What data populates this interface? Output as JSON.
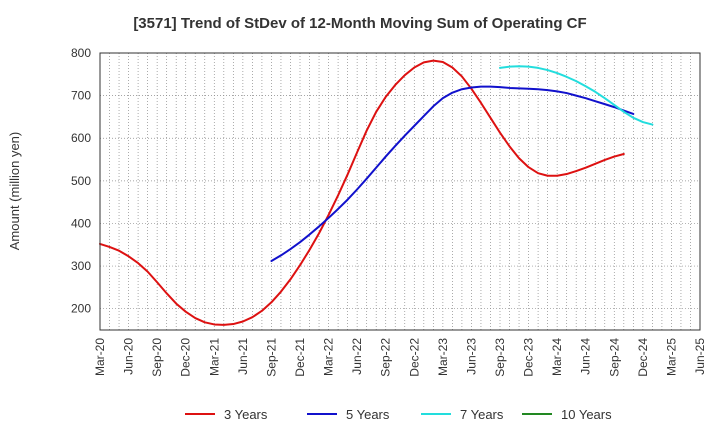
{
  "chart_data": {
    "type": "line",
    "title": "[3571]  Trend of StDev of 12-Month Moving Sum of Operating CF",
    "xlabel": "",
    "ylabel": "Amount (million yen)",
    "ylim": [
      150,
      800
    ],
    "yticks": [
      200,
      300,
      400,
      500,
      600,
      700,
      800
    ],
    "x_range": [
      "Mar-20",
      "Jun-25"
    ],
    "x_tick_labels": [
      "Mar-20",
      "Jun-20",
      "Sep-20",
      "Dec-20",
      "Mar-21",
      "Jun-21",
      "Sep-21",
      "Dec-21",
      "Mar-22",
      "Jun-22",
      "Sep-22",
      "Dec-22",
      "Mar-23",
      "Jun-23",
      "Sep-23",
      "Dec-23",
      "Mar-24",
      "Jun-24",
      "Sep-24",
      "Dec-24",
      "Mar-25",
      "Jun-25"
    ],
    "grid": true,
    "legend_position": "bottom",
    "series": [
      {
        "name": "3 Years",
        "color": "#dd1111",
        "points": [
          [
            "Mar-20",
            352
          ],
          [
            "Apr-20",
            345
          ],
          [
            "May-20",
            336
          ],
          [
            "Jun-20",
            323
          ],
          [
            "Jul-20",
            307
          ],
          [
            "Aug-20",
            287
          ],
          [
            "Sep-20",
            262
          ],
          [
            "Oct-20",
            236
          ],
          [
            "Nov-20",
            212
          ],
          [
            "Dec-20",
            193
          ],
          [
            "Jan-21",
            178
          ],
          [
            "Feb-21",
            168
          ],
          [
            "Mar-21",
            163
          ],
          [
            "Apr-21",
            162
          ],
          [
            "May-21",
            164
          ],
          [
            "Jun-21",
            170
          ],
          [
            "Jul-21",
            180
          ],
          [
            "Aug-21",
            195
          ],
          [
            "Sep-21",
            215
          ],
          [
            "Oct-21",
            240
          ],
          [
            "Nov-21",
            269
          ],
          [
            "Dec-21",
            302
          ],
          [
            "Jan-22",
            338
          ],
          [
            "Feb-22",
            377
          ],
          [
            "Mar-22",
            420
          ],
          [
            "Apr-22",
            466
          ],
          [
            "May-22",
            515
          ],
          [
            "Jun-22",
            567
          ],
          [
            "Jul-22",
            618
          ],
          [
            "Aug-22",
            662
          ],
          [
            "Sep-22",
            697
          ],
          [
            "Oct-22",
            725
          ],
          [
            "Nov-22",
            748
          ],
          [
            "Dec-22",
            766
          ],
          [
            "Jan-23",
            778
          ],
          [
            "Feb-23",
            782
          ],
          [
            "Mar-23",
            779
          ],
          [
            "Apr-23",
            766
          ],
          [
            "May-23",
            745
          ],
          [
            "Jun-23",
            716
          ],
          [
            "Jul-23",
            683
          ],
          [
            "Aug-23",
            648
          ],
          [
            "Sep-23",
            613
          ],
          [
            "Oct-23",
            581
          ],
          [
            "Nov-23",
            553
          ],
          [
            "Dec-23",
            532
          ],
          [
            "Jan-24",
            518
          ],
          [
            "Feb-24",
            512
          ],
          [
            "Mar-24",
            512
          ],
          [
            "Apr-24",
            516
          ],
          [
            "May-24",
            523
          ],
          [
            "Jun-24",
            531
          ],
          [
            "Jul-24",
            540
          ],
          [
            "Aug-24",
            549
          ],
          [
            "Sep-24",
            557
          ],
          [
            "Oct-24",
            563
          ]
        ]
      },
      {
        "name": "5 Years",
        "color": "#1111cc",
        "points": [
          [
            "Sep-21",
            312
          ],
          [
            "Oct-21",
            325
          ],
          [
            "Nov-21",
            340
          ],
          [
            "Dec-21",
            356
          ],
          [
            "Jan-22",
            374
          ],
          [
            "Feb-22",
            393
          ],
          [
            "Mar-22",
            413
          ],
          [
            "Apr-22",
            434
          ],
          [
            "May-22",
            456
          ],
          [
            "Jun-22",
            480
          ],
          [
            "Jul-22",
            505
          ],
          [
            "Aug-22",
            531
          ],
          [
            "Sep-22",
            557
          ],
          [
            "Oct-22",
            582
          ],
          [
            "Nov-22",
            606
          ],
          [
            "Dec-22",
            629
          ],
          [
            "Jan-23",
            652
          ],
          [
            "Feb-23",
            675
          ],
          [
            "Mar-23",
            694
          ],
          [
            "Apr-23",
            707
          ],
          [
            "May-23",
            715
          ],
          [
            "Jun-23",
            719
          ],
          [
            "Jul-23",
            721
          ],
          [
            "Aug-23",
            721
          ],
          [
            "Sep-23",
            720
          ],
          [
            "Oct-23",
            718
          ],
          [
            "Nov-23",
            717
          ],
          [
            "Dec-23",
            716
          ],
          [
            "Jan-24",
            715
          ],
          [
            "Feb-24",
            713
          ],
          [
            "Mar-24",
            710
          ],
          [
            "Apr-24",
            706
          ],
          [
            "May-24",
            700
          ],
          [
            "Jun-24",
            694
          ],
          [
            "Jul-24",
            687
          ],
          [
            "Aug-24",
            680
          ],
          [
            "Sep-24",
            673
          ],
          [
            "Oct-24",
            665
          ],
          [
            "Nov-24",
            657
          ]
        ]
      },
      {
        "name": "7 Years",
        "color": "#22dddd",
        "points": [
          [
            "Sep-23",
            765
          ],
          [
            "Oct-23",
            768
          ],
          [
            "Nov-23",
            769
          ],
          [
            "Dec-23",
            768
          ],
          [
            "Jan-24",
            765
          ],
          [
            "Feb-24",
            760
          ],
          [
            "Mar-24",
            753
          ],
          [
            "Apr-24",
            744
          ],
          [
            "May-24",
            734
          ],
          [
            "Jun-24",
            722
          ],
          [
            "Jul-24",
            709
          ],
          [
            "Aug-24",
            694
          ],
          [
            "Sep-24",
            678
          ],
          [
            "Oct-24",
            662
          ],
          [
            "Nov-24",
            648
          ],
          [
            "Dec-24",
            638
          ],
          [
            "Jan-25",
            632
          ]
        ]
      },
      {
        "name": "10 Years",
        "color": "#228822",
        "points": []
      }
    ]
  }
}
